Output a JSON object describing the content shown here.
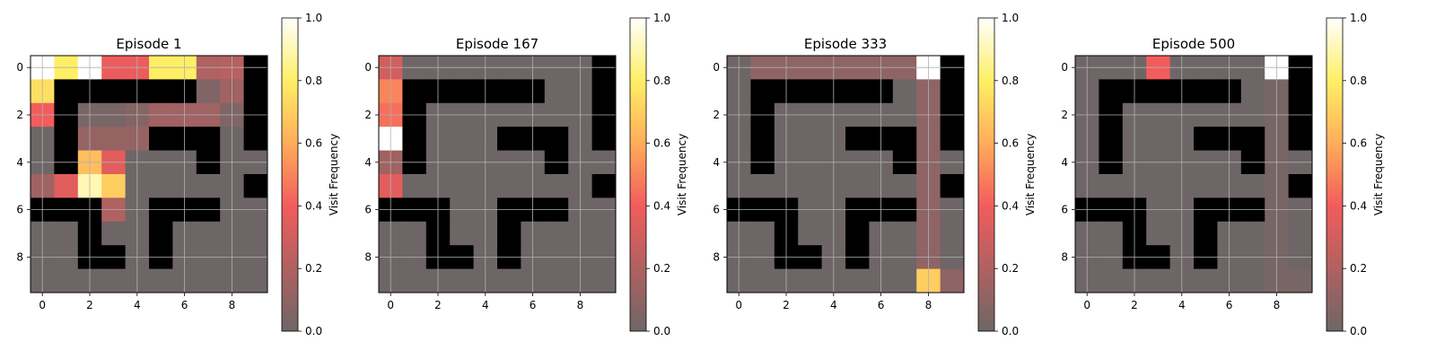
{
  "chart_data": [
    {
      "type": "heatmap",
      "title": "Episode 1",
      "colorbar_label": "Visit Frequency",
      "colorbar_ticks": [
        "0.0",
        "0.2",
        "0.4",
        "0.6",
        "0.8",
        "1.0"
      ],
      "x_ticks": [
        "0",
        "2",
        "4",
        "6",
        "8"
      ],
      "y_ticks": [
        "0",
        "2",
        "4",
        "6",
        "8"
      ],
      "walls": [
        [
          1,
          1
        ],
        [
          2,
          1
        ],
        [
          3,
          1
        ],
        [
          4,
          1
        ],
        [
          5,
          1
        ],
        [
          6,
          1
        ],
        [
          1,
          2
        ],
        [
          1,
          3
        ],
        [
          1,
          4
        ],
        [
          9,
          0
        ],
        [
          9,
          1
        ],
        [
          9,
          2
        ],
        [
          9,
          3
        ],
        [
          5,
          3
        ],
        [
          6,
          3
        ],
        [
          7,
          3
        ],
        [
          7,
          4
        ],
        [
          9,
          5
        ],
        [
          0,
          6
        ],
        [
          1,
          6
        ],
        [
          2,
          6
        ],
        [
          5,
          6
        ],
        [
          6,
          6
        ],
        [
          7,
          6
        ],
        [
          2,
          7
        ],
        [
          2,
          8
        ],
        [
          3,
          8
        ],
        [
          5,
          7
        ],
        [
          5,
          8
        ]
      ],
      "values": [
        [
          1.0,
          0.8,
          1.0,
          0.38,
          0.38,
          0.8,
          0.8,
          0.2,
          0.22,
          null
        ],
        [
          0.75,
          null,
          null,
          null,
          null,
          null,
          null,
          0.05,
          0.15,
          null
        ],
        [
          0.4,
          null,
          0.03,
          0.03,
          0.07,
          0.15,
          0.15,
          0.15,
          0.05,
          null
        ],
        [
          0.0,
          null,
          0.12,
          0.12,
          0.12,
          null,
          null,
          null,
          0.0,
          null
        ],
        [
          0.0,
          null,
          0.65,
          0.35,
          0.0,
          0.0,
          0.0,
          null,
          0.0,
          0.0
        ],
        [
          0.15,
          0.35,
          0.9,
          0.7,
          0.0,
          0.0,
          0.0,
          0.0,
          0.0,
          null
        ],
        [
          null,
          null,
          null,
          0.2,
          0.0,
          null,
          null,
          null,
          0.0,
          0.0
        ],
        [
          0.0,
          0.0,
          null,
          0.0,
          0.0,
          null,
          0.0,
          0.0,
          0.0,
          0.0
        ],
        [
          0.0,
          0.0,
          null,
          null,
          0.0,
          null,
          0.0,
          0.0,
          0.0,
          0.0
        ],
        [
          0.0,
          0.0,
          0.0,
          0.0,
          0.0,
          0.0,
          0.0,
          0.0,
          0.0,
          0.0
        ]
      ]
    },
    {
      "type": "heatmap",
      "title": "Episode 167",
      "colorbar_label": "Visit Frequency",
      "colorbar_ticks": [
        "0.0",
        "0.2",
        "0.4",
        "0.6",
        "0.8",
        "1.0"
      ],
      "x_ticks": [
        "0",
        "2",
        "4",
        "6",
        "8"
      ],
      "y_ticks": [
        "0",
        "2",
        "4",
        "6",
        "8"
      ],
      "values": [
        [
          0.3,
          0.0,
          0.0,
          0.0,
          0.0,
          0.0,
          0.0,
          0.0,
          0.0,
          null
        ],
        [
          0.5,
          null,
          null,
          null,
          null,
          null,
          null,
          0.0,
          0.0,
          null
        ],
        [
          0.45,
          null,
          0.0,
          0.0,
          0.0,
          0.0,
          0.0,
          0.0,
          0.0,
          null
        ],
        [
          1.0,
          null,
          0.0,
          0.0,
          0.0,
          null,
          null,
          null,
          0.0,
          null
        ],
        [
          0.15,
          null,
          0.0,
          0.0,
          0.0,
          0.0,
          0.0,
          null,
          0.0,
          0.0
        ],
        [
          0.35,
          0.0,
          0.0,
          0.0,
          0.0,
          0.0,
          0.0,
          0.0,
          0.0,
          null
        ],
        [
          null,
          null,
          null,
          0.0,
          0.0,
          null,
          null,
          null,
          0.0,
          0.0
        ],
        [
          0.0,
          0.0,
          null,
          0.0,
          0.0,
          null,
          0.0,
          0.0,
          0.0,
          0.0
        ],
        [
          0.0,
          0.0,
          null,
          null,
          0.0,
          null,
          0.0,
          0.0,
          0.0,
          0.0
        ],
        [
          0.0,
          0.0,
          0.0,
          0.0,
          0.0,
          0.0,
          0.0,
          0.0,
          0.0,
          0.0
        ]
      ]
    },
    {
      "type": "heatmap",
      "title": "Episode 333",
      "colorbar_label": "Visit Frequency",
      "colorbar_ticks": [
        "0.0",
        "0.2",
        "0.4",
        "0.6",
        "0.8",
        "1.0"
      ],
      "x_ticks": [
        "0",
        "2",
        "4",
        "6",
        "8"
      ],
      "y_ticks": [
        "0",
        "2",
        "4",
        "6",
        "8"
      ],
      "values": [
        [
          0.0,
          0.1,
          0.1,
          0.1,
          0.1,
          0.1,
          0.1,
          0.1,
          1.0,
          null
        ],
        [
          0.0,
          null,
          null,
          null,
          null,
          null,
          null,
          0.0,
          0.1,
          null
        ],
        [
          0.0,
          null,
          0.0,
          0.0,
          0.0,
          0.0,
          0.0,
          0.0,
          0.1,
          null
        ],
        [
          0.0,
          null,
          0.0,
          0.0,
          0.0,
          null,
          null,
          null,
          0.1,
          null
        ],
        [
          0.0,
          null,
          0.0,
          0.0,
          0.0,
          0.0,
          0.0,
          null,
          0.1,
          0.0
        ],
        [
          0.0,
          0.0,
          0.0,
          0.0,
          0.0,
          0.0,
          0.0,
          0.0,
          0.1,
          null
        ],
        [
          null,
          null,
          null,
          0.0,
          0.0,
          null,
          null,
          null,
          0.1,
          0.0
        ],
        [
          0.0,
          0.0,
          null,
          0.0,
          0.0,
          null,
          0.0,
          0.0,
          0.1,
          0.0
        ],
        [
          0.0,
          0.0,
          null,
          null,
          0.0,
          null,
          0.0,
          0.0,
          0.1,
          0.0
        ],
        [
          0.0,
          0.0,
          0.0,
          0.0,
          0.0,
          0.0,
          0.0,
          0.0,
          0.7,
          0.1
        ]
      ]
    },
    {
      "type": "heatmap",
      "title": "Episode 500",
      "colorbar_label": "Visit Frequency",
      "colorbar_ticks": [
        "0.0",
        "0.2",
        "0.4",
        "0.6",
        "0.8",
        "1.0"
      ],
      "x_ticks": [
        "0",
        "2",
        "4",
        "6",
        "8"
      ],
      "y_ticks": [
        "0",
        "2",
        "4",
        "6",
        "8"
      ],
      "values": [
        [
          0.0,
          0.0,
          0.0,
          0.4,
          0.0,
          0.0,
          0.0,
          0.0,
          1.0,
          null
        ],
        [
          0.0,
          null,
          null,
          null,
          null,
          null,
          null,
          0.0,
          0.03,
          null
        ],
        [
          0.0,
          null,
          0.0,
          0.0,
          0.0,
          0.0,
          0.0,
          0.0,
          0.03,
          null
        ],
        [
          0.0,
          null,
          0.0,
          0.0,
          0.0,
          null,
          null,
          null,
          0.03,
          null
        ],
        [
          0.0,
          null,
          0.0,
          0.0,
          0.0,
          0.0,
          0.0,
          null,
          0.03,
          0.0
        ],
        [
          0.0,
          0.0,
          0.0,
          0.0,
          0.0,
          0.0,
          0.0,
          0.0,
          0.03,
          null
        ],
        [
          null,
          null,
          null,
          0.0,
          0.0,
          null,
          null,
          null,
          0.03,
          0.0
        ],
        [
          0.0,
          0.0,
          null,
          0.0,
          0.0,
          null,
          0.0,
          0.0,
          0.03,
          0.0
        ],
        [
          0.0,
          0.0,
          null,
          null,
          0.0,
          null,
          0.0,
          0.0,
          0.03,
          0.0
        ],
        [
          0.0,
          0.0,
          0.0,
          0.0,
          0.0,
          0.0,
          0.0,
          0.0,
          0.03,
          0.03
        ]
      ]
    }
  ]
}
